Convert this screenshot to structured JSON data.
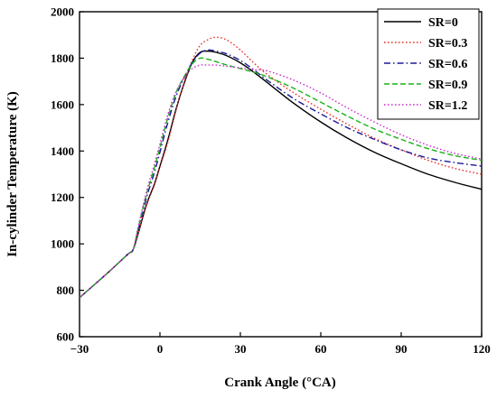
{
  "chart_data": {
    "type": "line",
    "title": "",
    "xlabel": "Crank Angle (°CA)",
    "ylabel": "In-cylinder Temperature (K)",
    "xlim": [
      -30,
      120
    ],
    "ylim": [
      600,
      2000
    ],
    "xticks": [
      -30,
      0,
      30,
      60,
      90,
      120
    ],
    "xtick_labels": [
      "−30",
      "0",
      "30",
      "60",
      "90",
      "120"
    ],
    "yticks": [
      600,
      800,
      1000,
      1200,
      1400,
      1600,
      1800,
      2000
    ],
    "ytick_labels": [
      "600",
      "800",
      "1000",
      "1200",
      "1400",
      "1600",
      "1800",
      "2000"
    ],
    "legend_position": "top-right",
    "grid": false,
    "series": [
      {
        "name": "SR=0",
        "color": "#000000",
        "dash": "solid",
        "x": [
          -30,
          -20,
          -12,
          -10,
          -8,
          -5,
          -2,
          0,
          3,
          6,
          9,
          12,
          15,
          18,
          21,
          25,
          30,
          35,
          40,
          50,
          60,
          70,
          80,
          90,
          100,
          110,
          120
        ],
        "y": [
          768,
          870,
          955,
          975,
          1050,
          1170,
          1260,
          1335,
          1450,
          1580,
          1690,
          1780,
          1825,
          1830,
          1825,
          1810,
          1780,
          1740,
          1695,
          1605,
          1525,
          1455,
          1395,
          1345,
          1300,
          1265,
          1235
        ]
      },
      {
        "name": "SR=0.3",
        "color": "#e8302a",
        "dash": "dot",
        "x": [
          -30,
          -20,
          -12,
          -10,
          -8,
          -5,
          -2,
          0,
          3,
          6,
          9,
          12,
          15,
          18,
          21,
          25,
          30,
          35,
          40,
          50,
          60,
          70,
          80,
          90,
          100,
          110,
          120
        ],
        "y": [
          768,
          870,
          955,
          975,
          1048,
          1165,
          1255,
          1330,
          1440,
          1575,
          1695,
          1790,
          1855,
          1880,
          1890,
          1878,
          1835,
          1780,
          1730,
          1650,
          1580,
          1515,
          1455,
          1405,
          1360,
          1325,
          1300
        ]
      },
      {
        "name": "SR=0.6",
        "color": "#1a1a9c",
        "dash": "dashdot",
        "x": [
          -30,
          -20,
          -12,
          -10,
          -8,
          -5,
          -2,
          0,
          3,
          6,
          9,
          12,
          15,
          18,
          21,
          25,
          30,
          35,
          40,
          50,
          60,
          70,
          80,
          90,
          100,
          110,
          120
        ],
        "y": [
          768,
          870,
          955,
          975,
          1065,
          1200,
          1310,
          1395,
          1525,
          1635,
          1715,
          1780,
          1822,
          1835,
          1830,
          1818,
          1790,
          1750,
          1705,
          1625,
          1560,
          1500,
          1450,
          1405,
          1370,
          1350,
          1335
        ]
      },
      {
        "name": "SR=0.9",
        "color": "#19b219",
        "dash": "dash",
        "x": [
          -30,
          -20,
          -12,
          -10,
          -8,
          -5,
          -2,
          0,
          3,
          6,
          9,
          12,
          15,
          18,
          21,
          25,
          30,
          35,
          40,
          50,
          60,
          70,
          80,
          90,
          100,
          110,
          120
        ],
        "y": [
          768,
          870,
          955,
          975,
          1075,
          1215,
          1330,
          1415,
          1545,
          1650,
          1720,
          1775,
          1800,
          1795,
          1785,
          1770,
          1755,
          1740,
          1720,
          1670,
          1610,
          1550,
          1495,
          1450,
          1410,
          1380,
          1360
        ]
      },
      {
        "name": "SR=1.2",
        "color": "#cc2ecc",
        "dash": "dot",
        "x": [
          -30,
          -20,
          -12,
          -10,
          -8,
          -5,
          -2,
          0,
          3,
          6,
          9,
          12,
          15,
          18,
          21,
          25,
          30,
          35,
          40,
          50,
          60,
          70,
          80,
          90,
          100,
          110,
          120
        ],
        "y": [
          768,
          870,
          955,
          975,
          1080,
          1225,
          1345,
          1430,
          1560,
          1655,
          1715,
          1755,
          1770,
          1770,
          1770,
          1765,
          1758,
          1750,
          1745,
          1705,
          1650,
          1585,
          1525,
          1470,
          1425,
          1390,
          1365
        ]
      }
    ]
  }
}
